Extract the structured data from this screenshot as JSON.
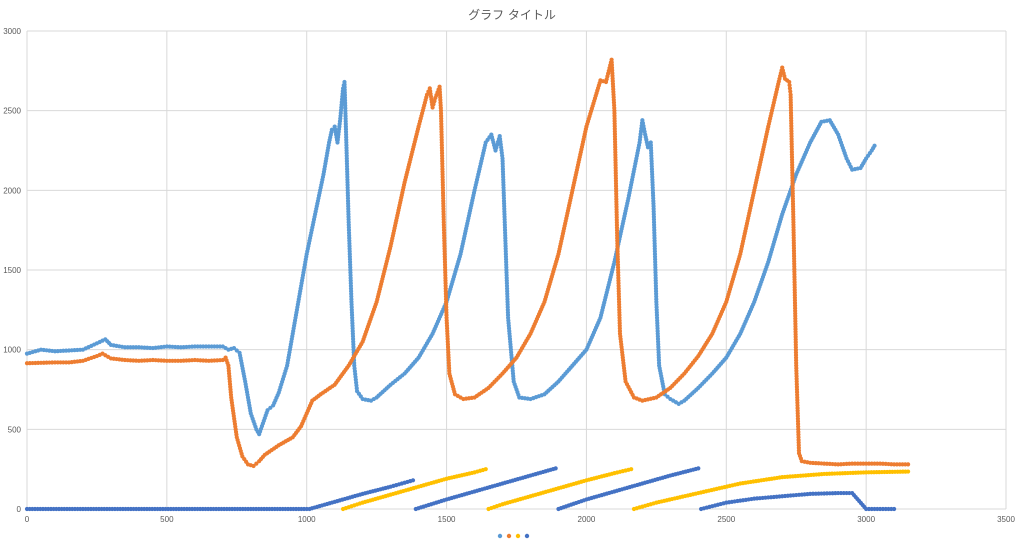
{
  "chart_data": {
    "type": "scatter",
    "title": "グラフ タイトル",
    "xlabel": "",
    "ylabel": "",
    "xlim": [
      0,
      3500
    ],
    "ylim": [
      0,
      3000
    ],
    "x_ticks": [
      "0",
      "500",
      "1000",
      "1500",
      "2000",
      "2500",
      "3000",
      "3500"
    ],
    "y_ticks": [
      "0",
      "500",
      "1000",
      "1500",
      "2000",
      "2500",
      "3000"
    ],
    "grid": true,
    "legend_position": "bottom",
    "series": [
      {
        "color": "#5B9BD5",
        "points": [
          [
            0,
            975
          ],
          [
            50,
            1000
          ],
          [
            100,
            990
          ],
          [
            150,
            995
          ],
          [
            200,
            1000
          ],
          [
            250,
            1040
          ],
          [
            280,
            1065
          ],
          [
            300,
            1030
          ],
          [
            350,
            1015
          ],
          [
            400,
            1015
          ],
          [
            450,
            1010
          ],
          [
            500,
            1020
          ],
          [
            550,
            1015
          ],
          [
            600,
            1020
          ],
          [
            650,
            1020
          ],
          [
            700,
            1020
          ],
          [
            720,
            1000
          ],
          [
            740,
            1010
          ],
          [
            760,
            980
          ],
          [
            780,
            800
          ],
          [
            800,
            600
          ],
          [
            820,
            500
          ],
          [
            830,
            470
          ],
          [
            840,
            520
          ],
          [
            860,
            620
          ],
          [
            880,
            650
          ],
          [
            900,
            730
          ],
          [
            930,
            900
          ],
          [
            950,
            1100
          ],
          [
            980,
            1400
          ],
          [
            1000,
            1600
          ],
          [
            1030,
            1850
          ],
          [
            1060,
            2100
          ],
          [
            1080,
            2300
          ],
          [
            1090,
            2380
          ],
          [
            1100,
            2400
          ],
          [
            1110,
            2300
          ],
          [
            1120,
            2450
          ],
          [
            1130,
            2640
          ],
          [
            1135,
            2680
          ],
          [
            1140,
            2400
          ],
          [
            1150,
            1800
          ],
          [
            1160,
            1300
          ],
          [
            1170,
            900
          ],
          [
            1180,
            740
          ],
          [
            1200,
            690
          ],
          [
            1230,
            680
          ],
          [
            1250,
            700
          ],
          [
            1300,
            780
          ],
          [
            1350,
            850
          ],
          [
            1400,
            950
          ],
          [
            1450,
            1100
          ],
          [
            1500,
            1300
          ],
          [
            1550,
            1600
          ],
          [
            1600,
            2000
          ],
          [
            1640,
            2300
          ],
          [
            1660,
            2350
          ],
          [
            1675,
            2250
          ],
          [
            1690,
            2340
          ],
          [
            1700,
            2200
          ],
          [
            1710,
            1700
          ],
          [
            1720,
            1200
          ],
          [
            1740,
            800
          ],
          [
            1760,
            700
          ],
          [
            1800,
            690
          ],
          [
            1850,
            720
          ],
          [
            1900,
            800
          ],
          [
            1950,
            900
          ],
          [
            2000,
            1000
          ],
          [
            2050,
            1200
          ],
          [
            2100,
            1550
          ],
          [
            2150,
            1950
          ],
          [
            2190,
            2300
          ],
          [
            2200,
            2440
          ],
          [
            2210,
            2350
          ],
          [
            2220,
            2270
          ],
          [
            2230,
            2300
          ],
          [
            2240,
            1900
          ],
          [
            2250,
            1300
          ],
          [
            2260,
            900
          ],
          [
            2280,
            720
          ],
          [
            2300,
            690
          ],
          [
            2330,
            660
          ],
          [
            2350,
            680
          ],
          [
            2400,
            760
          ],
          [
            2450,
            850
          ],
          [
            2500,
            950
          ],
          [
            2550,
            1100
          ],
          [
            2600,
            1300
          ],
          [
            2650,
            1550
          ],
          [
            2700,
            1850
          ],
          [
            2750,
            2100
          ],
          [
            2800,
            2300
          ],
          [
            2840,
            2430
          ],
          [
            2870,
            2440
          ],
          [
            2900,
            2350
          ],
          [
            2930,
            2200
          ],
          [
            2950,
            2130
          ],
          [
            2980,
            2140
          ],
          [
            3000,
            2200
          ],
          [
            3020,
            2250
          ],
          [
            3030,
            2280
          ]
        ]
      },
      {
        "color": "#ED7D31",
        "points": [
          [
            0,
            915
          ],
          [
            100,
            920
          ],
          [
            150,
            920
          ],
          [
            200,
            930
          ],
          [
            250,
            960
          ],
          [
            270,
            975
          ],
          [
            300,
            945
          ],
          [
            350,
            935
          ],
          [
            400,
            930
          ],
          [
            450,
            935
          ],
          [
            500,
            930
          ],
          [
            550,
            930
          ],
          [
            600,
            935
          ],
          [
            650,
            930
          ],
          [
            700,
            935
          ],
          [
            710,
            950
          ],
          [
            720,
            900
          ],
          [
            730,
            700
          ],
          [
            750,
            450
          ],
          [
            770,
            330
          ],
          [
            790,
            280
          ],
          [
            810,
            270
          ],
          [
            830,
            300
          ],
          [
            850,
            340
          ],
          [
            900,
            400
          ],
          [
            950,
            450
          ],
          [
            980,
            520
          ],
          [
            1000,
            600
          ],
          [
            1020,
            680
          ],
          [
            1050,
            720
          ],
          [
            1100,
            780
          ],
          [
            1150,
            900
          ],
          [
            1200,
            1050
          ],
          [
            1250,
            1300
          ],
          [
            1300,
            1650
          ],
          [
            1350,
            2050
          ],
          [
            1400,
            2400
          ],
          [
            1430,
            2600
          ],
          [
            1440,
            2640
          ],
          [
            1450,
            2520
          ],
          [
            1460,
            2580
          ],
          [
            1475,
            2650
          ],
          [
            1480,
            2500
          ],
          [
            1490,
            1800
          ],
          [
            1500,
            1200
          ],
          [
            1510,
            850
          ],
          [
            1530,
            720
          ],
          [
            1560,
            690
          ],
          [
            1600,
            700
          ],
          [
            1650,
            760
          ],
          [
            1700,
            850
          ],
          [
            1750,
            950
          ],
          [
            1800,
            1100
          ],
          [
            1850,
            1300
          ],
          [
            1900,
            1600
          ],
          [
            1950,
            2000
          ],
          [
            2000,
            2400
          ],
          [
            2050,
            2690
          ],
          [
            2070,
            2680
          ],
          [
            2090,
            2820
          ],
          [
            2100,
            2500
          ],
          [
            2110,
            1700
          ],
          [
            2120,
            1100
          ],
          [
            2140,
            800
          ],
          [
            2170,
            700
          ],
          [
            2200,
            680
          ],
          [
            2250,
            700
          ],
          [
            2300,
            760
          ],
          [
            2350,
            850
          ],
          [
            2400,
            960
          ],
          [
            2450,
            1100
          ],
          [
            2500,
            1300
          ],
          [
            2550,
            1600
          ],
          [
            2600,
            2000
          ],
          [
            2650,
            2400
          ],
          [
            2690,
            2700
          ],
          [
            2700,
            2770
          ],
          [
            2710,
            2700
          ],
          [
            2725,
            2680
          ],
          [
            2730,
            2600
          ],
          [
            2740,
            1800
          ],
          [
            2750,
            900
          ],
          [
            2760,
            350
          ],
          [
            2770,
            300
          ],
          [
            2800,
            290
          ],
          [
            2850,
            285
          ],
          [
            2900,
            280
          ],
          [
            2950,
            285
          ],
          [
            3000,
            285
          ],
          [
            3050,
            285
          ],
          [
            3100,
            280
          ],
          [
            3140,
            280
          ],
          [
            3150,
            280
          ]
        ]
      },
      {
        "color": "#FFC000",
        "points": [
          [
            1130,
            0
          ],
          [
            1200,
            40
          ],
          [
            1300,
            90
          ],
          [
            1400,
            140
          ],
          [
            1500,
            190
          ],
          [
            1600,
            230
          ],
          [
            1640,
            250
          ],
          [
            1650,
            0
          ],
          [
            1700,
            30
          ],
          [
            1800,
            80
          ],
          [
            1900,
            130
          ],
          [
            2000,
            180
          ],
          [
            2100,
            225
          ],
          [
            2160,
            250
          ],
          [
            2170,
            0
          ],
          [
            2250,
            40
          ],
          [
            2400,
            100
          ],
          [
            2550,
            160
          ],
          [
            2700,
            200
          ],
          [
            2850,
            220
          ],
          [
            3000,
            230
          ],
          [
            3150,
            235
          ]
        ]
      },
      {
        "color": "#4472C4",
        "points": [
          [
            0,
            0
          ],
          [
            200,
            0
          ],
          [
            400,
            0
          ],
          [
            600,
            0
          ],
          [
            800,
            0
          ],
          [
            1000,
            0
          ],
          [
            1010,
            0
          ],
          [
            1100,
            45
          ],
          [
            1200,
            95
          ],
          [
            1300,
            140
          ],
          [
            1380,
            180
          ],
          [
            1390,
            0
          ],
          [
            1500,
            60
          ],
          [
            1600,
            110
          ],
          [
            1700,
            160
          ],
          [
            1800,
            210
          ],
          [
            1890,
            255
          ],
          [
            1900,
            0
          ],
          [
            2000,
            60
          ],
          [
            2100,
            110
          ],
          [
            2200,
            160
          ],
          [
            2300,
            210
          ],
          [
            2400,
            255
          ],
          [
            2410,
            0
          ],
          [
            2500,
            40
          ],
          [
            2600,
            65
          ],
          [
            2700,
            80
          ],
          [
            2800,
            95
          ],
          [
            2900,
            100
          ],
          [
            2950,
            100
          ],
          [
            3000,
            0
          ],
          [
            3050,
            0
          ],
          [
            3100,
            0
          ]
        ]
      }
    ]
  }
}
